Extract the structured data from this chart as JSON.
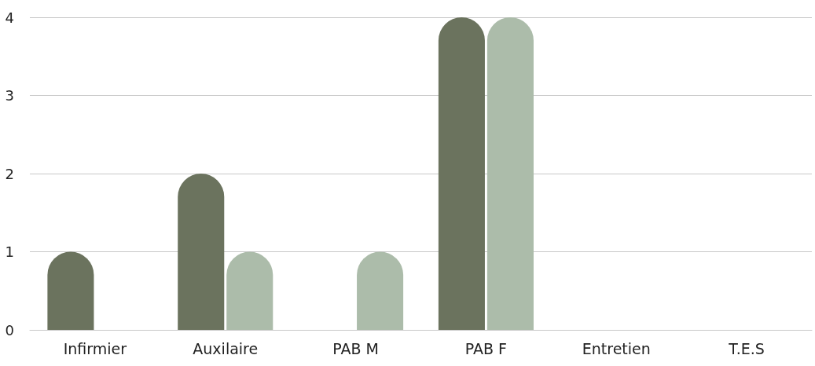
{
  "chart_data": {
    "type": "bar",
    "categories": [
      "Infirmier",
      "Auxilaire",
      "PAB M",
      "PAB F",
      "Entretien",
      "T.E.S"
    ],
    "series": [
      {
        "color": "#6b735e",
        "values": [
          1,
          2,
          0,
          4,
          0,
          0
        ]
      },
      {
        "color": "#acbcaa",
        "values": [
          0,
          1,
          1,
          4,
          0,
          0
        ]
      }
    ],
    "ylim": [
      0,
      4
    ],
    "yticks": [
      0,
      1,
      2,
      3,
      4
    ],
    "grid": "y"
  }
}
